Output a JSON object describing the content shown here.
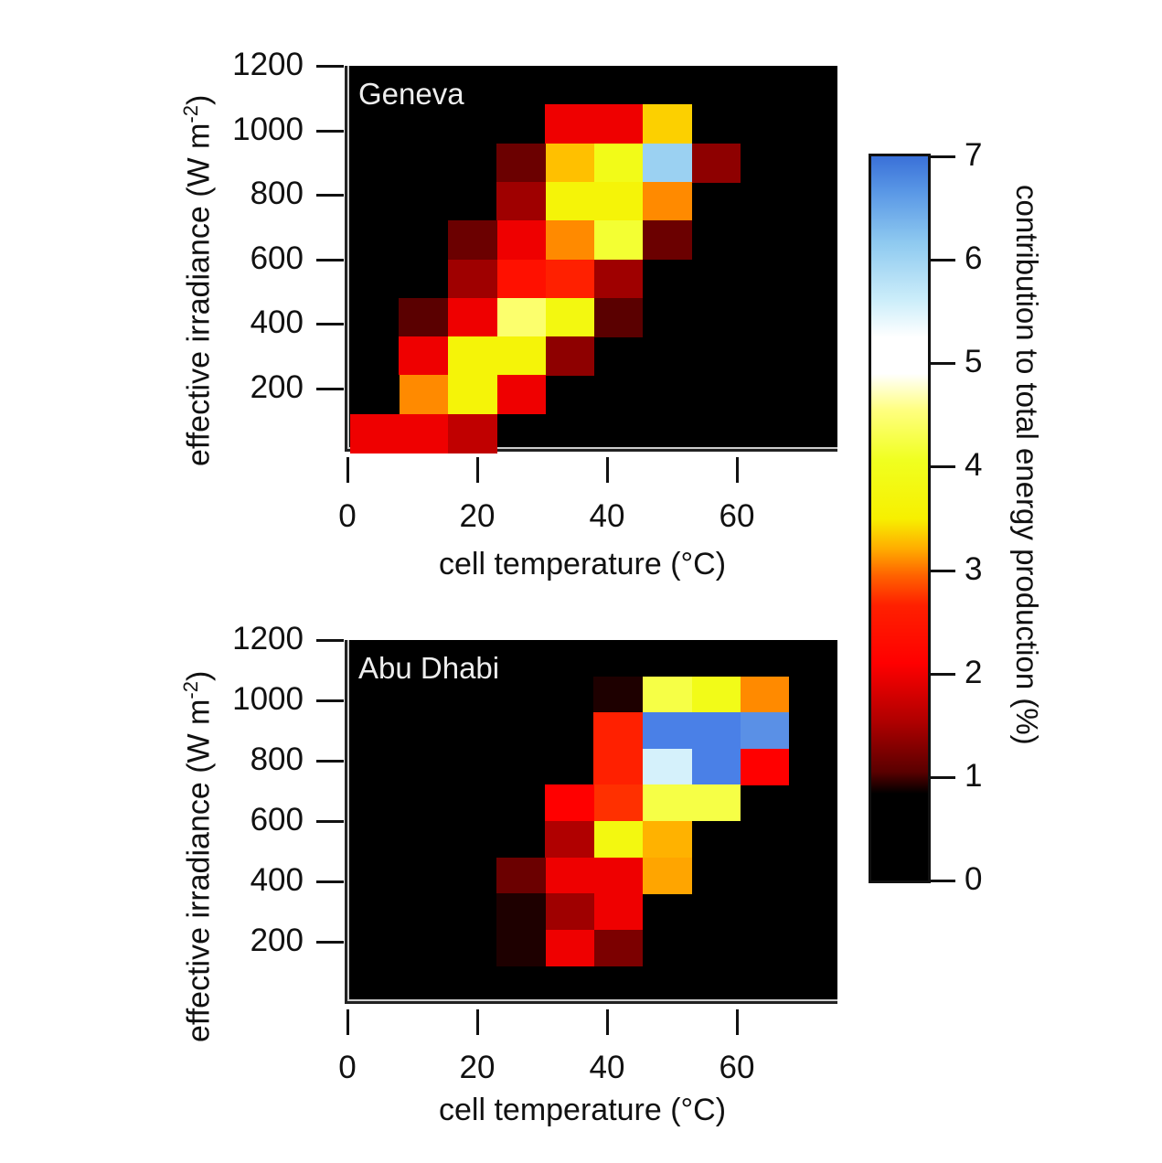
{
  "chart_data": [
    {
      "type": "heatmap",
      "title": "Geneva",
      "xlabel": "cell temperature (°C)",
      "ylabel": "effective irradiance (W m-2)",
      "xlim": [
        0,
        75
      ],
      "ylim": [
        0,
        1200
      ],
      "xticks": [
        "0",
        "20",
        "40",
        "60"
      ],
      "yticks": [
        "200",
        "400",
        "600",
        "800",
        "1000",
        "1200"
      ],
      "x_bin_edges": [
        0,
        7.5,
        15,
        22.5,
        30,
        37.5,
        45,
        52.5,
        60,
        67.5,
        75
      ],
      "y_bin_edges": [
        0,
        120,
        240,
        360,
        480,
        600,
        720,
        840,
        960,
        1080,
        1200
      ],
      "values_rows_bottom_to_top": [
        [
          2.0,
          2.0,
          1.7,
          0,
          0,
          0,
          0,
          0,
          0,
          0
        ],
        [
          0.8,
          3.0,
          3.8,
          2.0,
          0,
          0,
          0,
          0,
          0,
          0
        ],
        [
          0,
          2.0,
          3.8,
          3.8,
          1.4,
          0,
          0,
          0,
          0,
          0
        ],
        [
          0,
          1.1,
          2.0,
          4.5,
          3.9,
          1.1,
          0,
          0,
          0,
          0
        ],
        [
          0,
          0,
          1.5,
          2.3,
          2.5,
          1.5,
          0,
          0,
          0,
          0
        ],
        [
          0,
          0,
          1.2,
          2.0,
          3.0,
          4.2,
          1.2,
          0,
          0,
          0
        ],
        [
          0,
          0,
          0,
          1.5,
          3.8,
          3.8,
          3.0,
          0,
          0,
          0
        ],
        [
          0,
          0,
          0,
          1.2,
          3.4,
          4.0,
          6.0,
          1.4,
          0,
          0
        ],
        [
          0,
          0,
          0,
          0,
          2.0,
          2.0,
          3.5,
          0,
          0,
          0
        ],
        [
          0,
          0,
          0,
          0,
          0,
          0,
          0,
          0,
          0,
          0
        ]
      ]
    },
    {
      "type": "heatmap",
      "title": "Abu Dhabi",
      "xlabel": "cell temperature (°C)",
      "ylabel": "effective irradiance (W m-2)",
      "xlim": [
        0,
        75
      ],
      "ylim": [
        0,
        1200
      ],
      "xticks": [
        "0",
        "20",
        "40",
        "60"
      ],
      "yticks": [
        "200",
        "400",
        "600",
        "800",
        "1000",
        "1200"
      ],
      "x_bin_edges": [
        0,
        7.5,
        15,
        22.5,
        30,
        37.5,
        45,
        52.5,
        60,
        67.5,
        75
      ],
      "y_bin_edges": [
        0,
        120,
        240,
        360,
        480,
        600,
        720,
        840,
        960,
        1080,
        1200
      ],
      "values_rows_bottom_to_top": [
        [
          0,
          0,
          0,
          0.5,
          0,
          0,
          0,
          0,
          0,
          0
        ],
        [
          0,
          0,
          0,
          0.9,
          2.0,
          1.3,
          0,
          0,
          0,
          0
        ],
        [
          0,
          0,
          0,
          0.9,
          1.5,
          2.0,
          0,
          0,
          0,
          0
        ],
        [
          0,
          0,
          0,
          1.2,
          2.0,
          2.0,
          3.2,
          0,
          0,
          0
        ],
        [
          0,
          0,
          0,
          0,
          1.6,
          3.9,
          3.3,
          0,
          0,
          0
        ],
        [
          0,
          0,
          0,
          0,
          2.1,
          2.7,
          4.3,
          4.3,
          0,
          0
        ],
        [
          0,
          0,
          0,
          0,
          0,
          2.5,
          5.5,
          6.8,
          2.1,
          0
        ],
        [
          0,
          0,
          0,
          0,
          0,
          2.5,
          6.8,
          6.8,
          6.6,
          0
        ],
        [
          0,
          0,
          0,
          0,
          0,
          0.9,
          4.3,
          4.0,
          3.0,
          0
        ],
        [
          0,
          0,
          0,
          0,
          0,
          0,
          0,
          0,
          0,
          0
        ]
      ]
    }
  ],
  "colorbar": {
    "label": "contribution to total energy production (%)",
    "ticks": [
      "0",
      "1",
      "2",
      "3",
      "4",
      "5",
      "6",
      "7"
    ],
    "range": [
      0,
      7
    ],
    "stops": [
      {
        "v": 0,
        "c": "#000000"
      },
      {
        "v": 0.8,
        "c": "#000000"
      },
      {
        "v": 1.1,
        "c": "#5a0000"
      },
      {
        "v": 1.6,
        "c": "#b00000"
      },
      {
        "v": 2.1,
        "c": "#ff0000"
      },
      {
        "v": 2.7,
        "c": "#ff3000"
      },
      {
        "v": 3.0,
        "c": "#ff8a00"
      },
      {
        "v": 3.4,
        "c": "#ffc000"
      },
      {
        "v": 3.7,
        "c": "#f6f000"
      },
      {
        "v": 4.1,
        "c": "#f0ff20"
      },
      {
        "v": 4.6,
        "c": "#ffff80"
      },
      {
        "v": 5.0,
        "c": "#ffffff"
      },
      {
        "v": 5.6,
        "c": "#cdeefa"
      },
      {
        "v": 6.1,
        "c": "#8fcaf0"
      },
      {
        "v": 6.6,
        "c": "#5a90e6"
      },
      {
        "v": 7.0,
        "c": "#3a70e8"
      }
    ]
  }
}
